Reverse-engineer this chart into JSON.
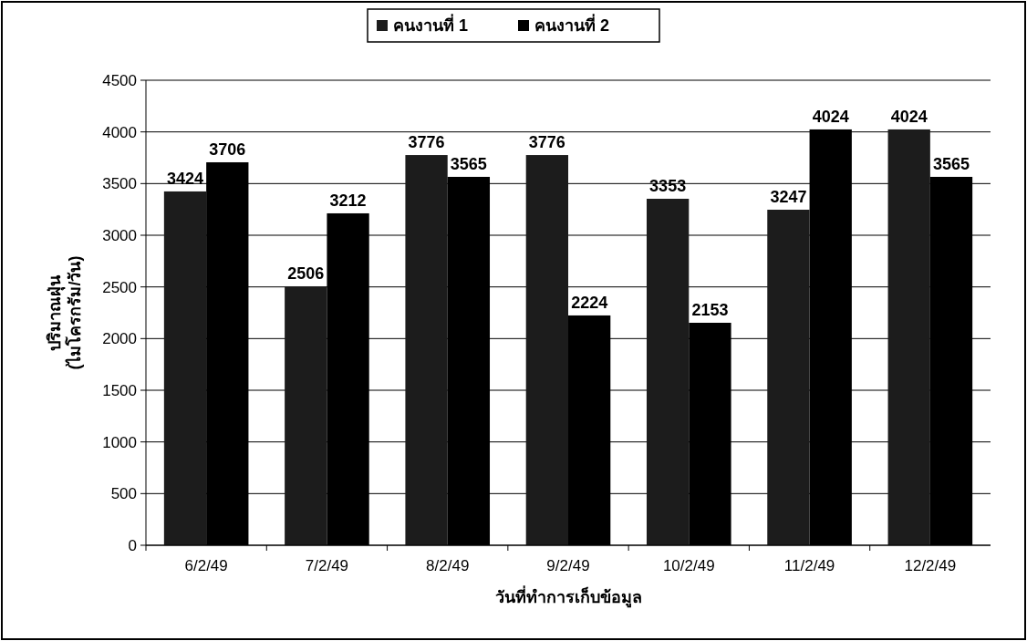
{
  "chart_data": {
    "type": "bar",
    "xlabel": "วันที่ทำการเก็บข้อมูล",
    "ylabel": "ปริมาณฝุ่น\n(ไมโครกรัม/วัน)",
    "categories": [
      "6/2/49",
      "7/2/49",
      "8/2/49",
      "9/2/49",
      "10/2/49",
      "11/2/49",
      "12/2/49"
    ],
    "series": [
      {
        "name": "คนงานที่ 1",
        "color": "#1c1c1c",
        "values": [
          3424,
          2506,
          3776,
          3776,
          3353,
          3247,
          4024
        ]
      },
      {
        "name": "คนงานที่ 2",
        "color": "#000000",
        "values": [
          3706,
          3212,
          3565,
          2224,
          2153,
          4024,
          3565
        ]
      }
    ],
    "ylim": [
      0,
      4500
    ],
    "yticks": [
      0,
      500,
      1000,
      1500,
      2000,
      2500,
      3000,
      3500,
      4000,
      4500
    ],
    "grid": "y",
    "legend": "top",
    "data_labels": true
  }
}
